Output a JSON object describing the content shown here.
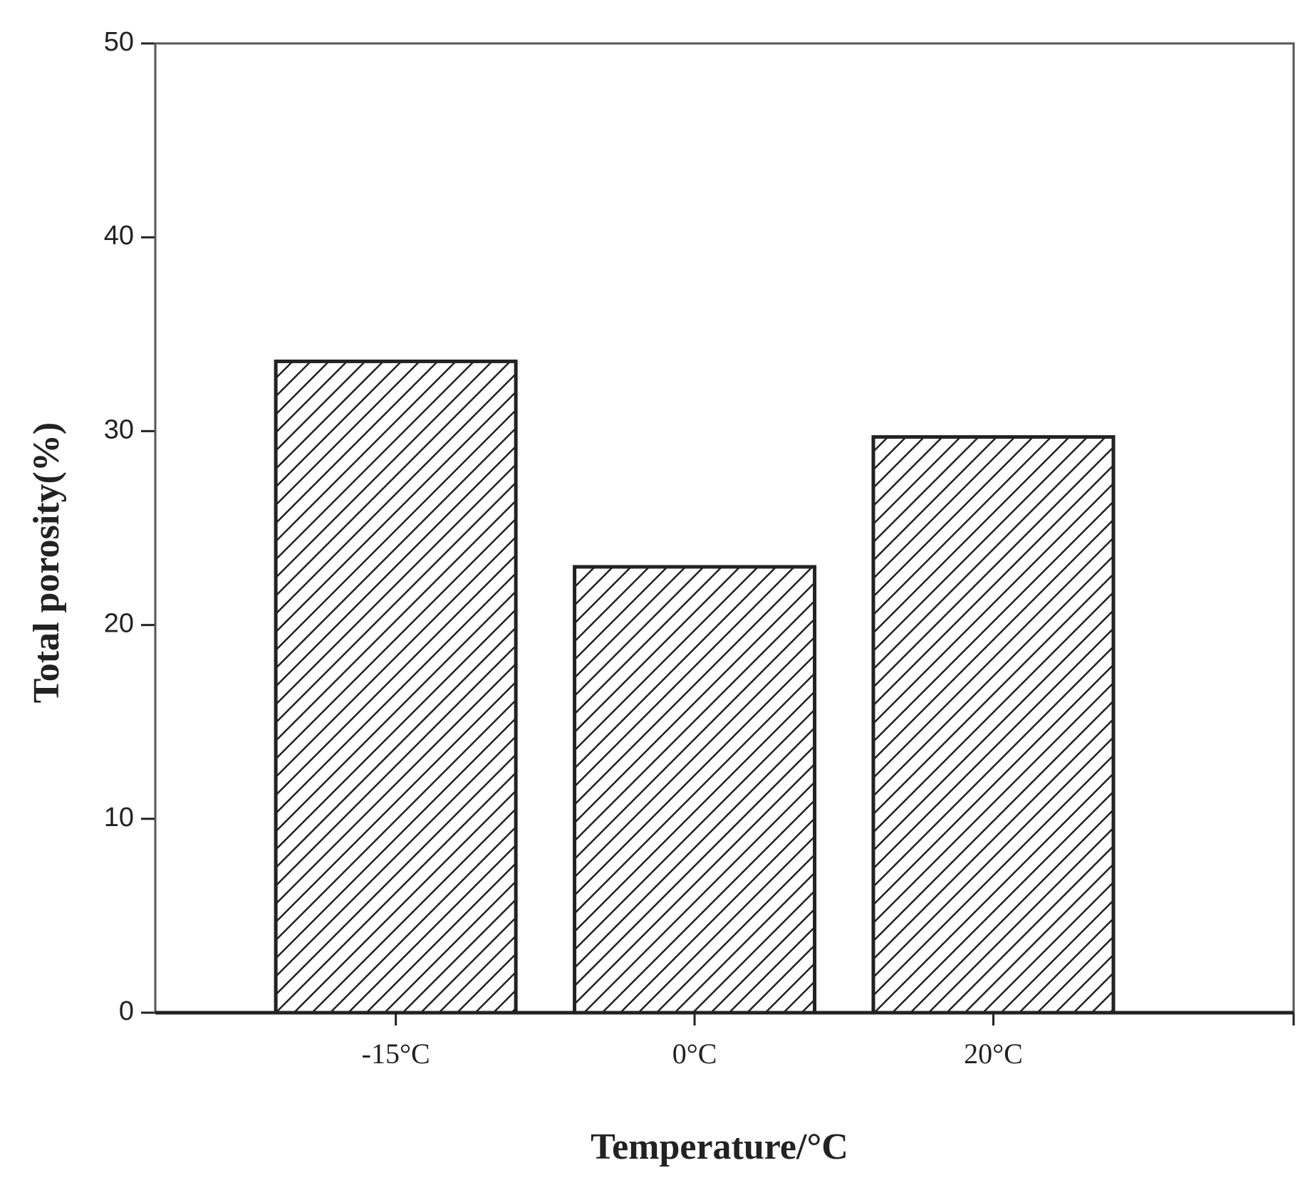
{
  "chart_data": {
    "type": "bar",
    "x_label": "Temperature/°C",
    "y_label": "Total porosity(%)",
    "categories": [
      "-15°C",
      "0°C",
      "20°C"
    ],
    "values": [
      33.6,
      23.0,
      29.7
    ],
    "color": "#222222",
    "ylim": [
      0,
      50
    ],
    "yticks": [
      0,
      10,
      20,
      30,
      40,
      50
    ],
    "grid": false
  }
}
